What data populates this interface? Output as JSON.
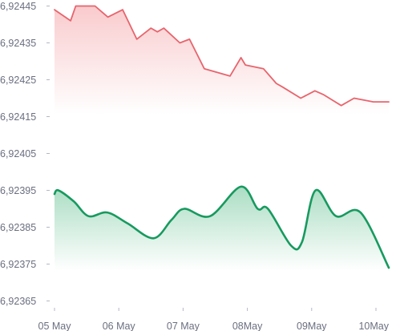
{
  "chart_data": {
    "type": "area",
    "title": "",
    "xlabel": "",
    "ylabel": "",
    "ylim": [
      6.92365,
      6.92448
    ],
    "y_ticks": [
      6.92445,
      6.92435,
      6.92425,
      6.92415,
      6.92405,
      6.92395,
      6.92385,
      6.92375,
      6.92365
    ],
    "y_tick_labels": [
      "6,92445",
      "6,92435",
      "6,92425",
      "6,92415",
      "6,92405",
      "6,92395",
      "6,92385",
      "6,92375",
      "6,92365"
    ],
    "x_ticks": [
      0,
      1,
      2,
      3,
      4,
      5
    ],
    "x_tick_labels": [
      "05 May",
      "06 May",
      "07 May",
      "08May",
      "09May",
      "10May"
    ],
    "grid": false,
    "legend": "none",
    "series": [
      {
        "color": "#e8646c",
        "fill_color": "#f28b90",
        "smooth": false,
        "x": [
          0,
          0.25,
          0.33,
          0.63,
          0.83,
          1.06,
          1.28,
          1.5,
          1.6,
          1.7,
          1.95,
          2.1,
          2.33,
          2.73,
          2.9,
          2.97,
          3.25,
          3.45,
          3.55,
          3.83,
          4.05,
          4.18,
          4.46,
          4.66,
          4.96,
          5.2
        ],
        "values": [
          6.92444,
          6.92441,
          6.92445,
          6.92445,
          6.92442,
          6.92444,
          6.92436,
          6.92439,
          6.92438,
          6.92439,
          6.92435,
          6.92436,
          6.92428,
          6.92426,
          6.92431,
          6.92429,
          6.92428,
          6.92424,
          6.92423,
          6.9242,
          6.92422,
          6.92421,
          6.92418,
          6.9242,
          6.92419,
          6.92419
        ]
      },
      {
        "color": "#179a5f",
        "fill_color": "#44b47a",
        "smooth": true,
        "x": [
          0,
          0.06,
          0.3,
          0.53,
          0.82,
          1.14,
          1.54,
          1.82,
          2.02,
          2.42,
          2.9,
          3.16,
          3.32,
          3.68,
          3.85,
          4.06,
          4.38,
          4.76,
          5.2
        ],
        "values": [
          6.92394,
          6.92395,
          6.92392,
          6.92388,
          6.92389,
          6.92386,
          6.92382,
          6.92387,
          6.9239,
          6.92388,
          6.92396,
          6.9239,
          6.9239,
          6.9238,
          6.92381,
          6.92395,
          6.92388,
          6.92389,
          6.92374
        ]
      }
    ]
  }
}
